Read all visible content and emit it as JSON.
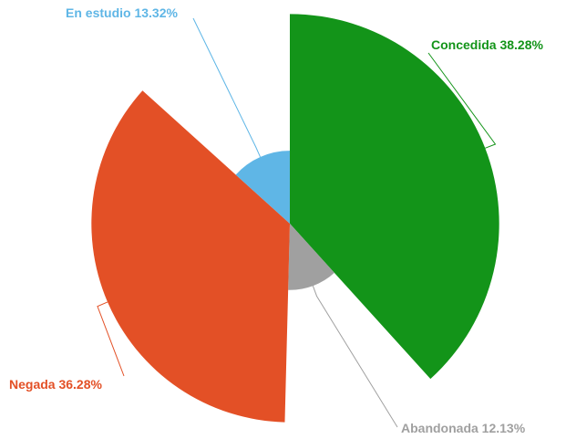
{
  "chart_data": {
    "type": "rose",
    "categories": [
      "Concedida",
      "Abandonada",
      "Negada",
      "En estudio"
    ],
    "values": [
      38.28,
      12.13,
      36.28,
      13.32
    ],
    "value_labels": [
      "38.28%",
      "12.13%",
      "36.28%",
      "13.32%"
    ],
    "colors": [
      "#139419",
      "#a0a0a0",
      "#e35026",
      "#5fb6e6"
    ]
  }
}
